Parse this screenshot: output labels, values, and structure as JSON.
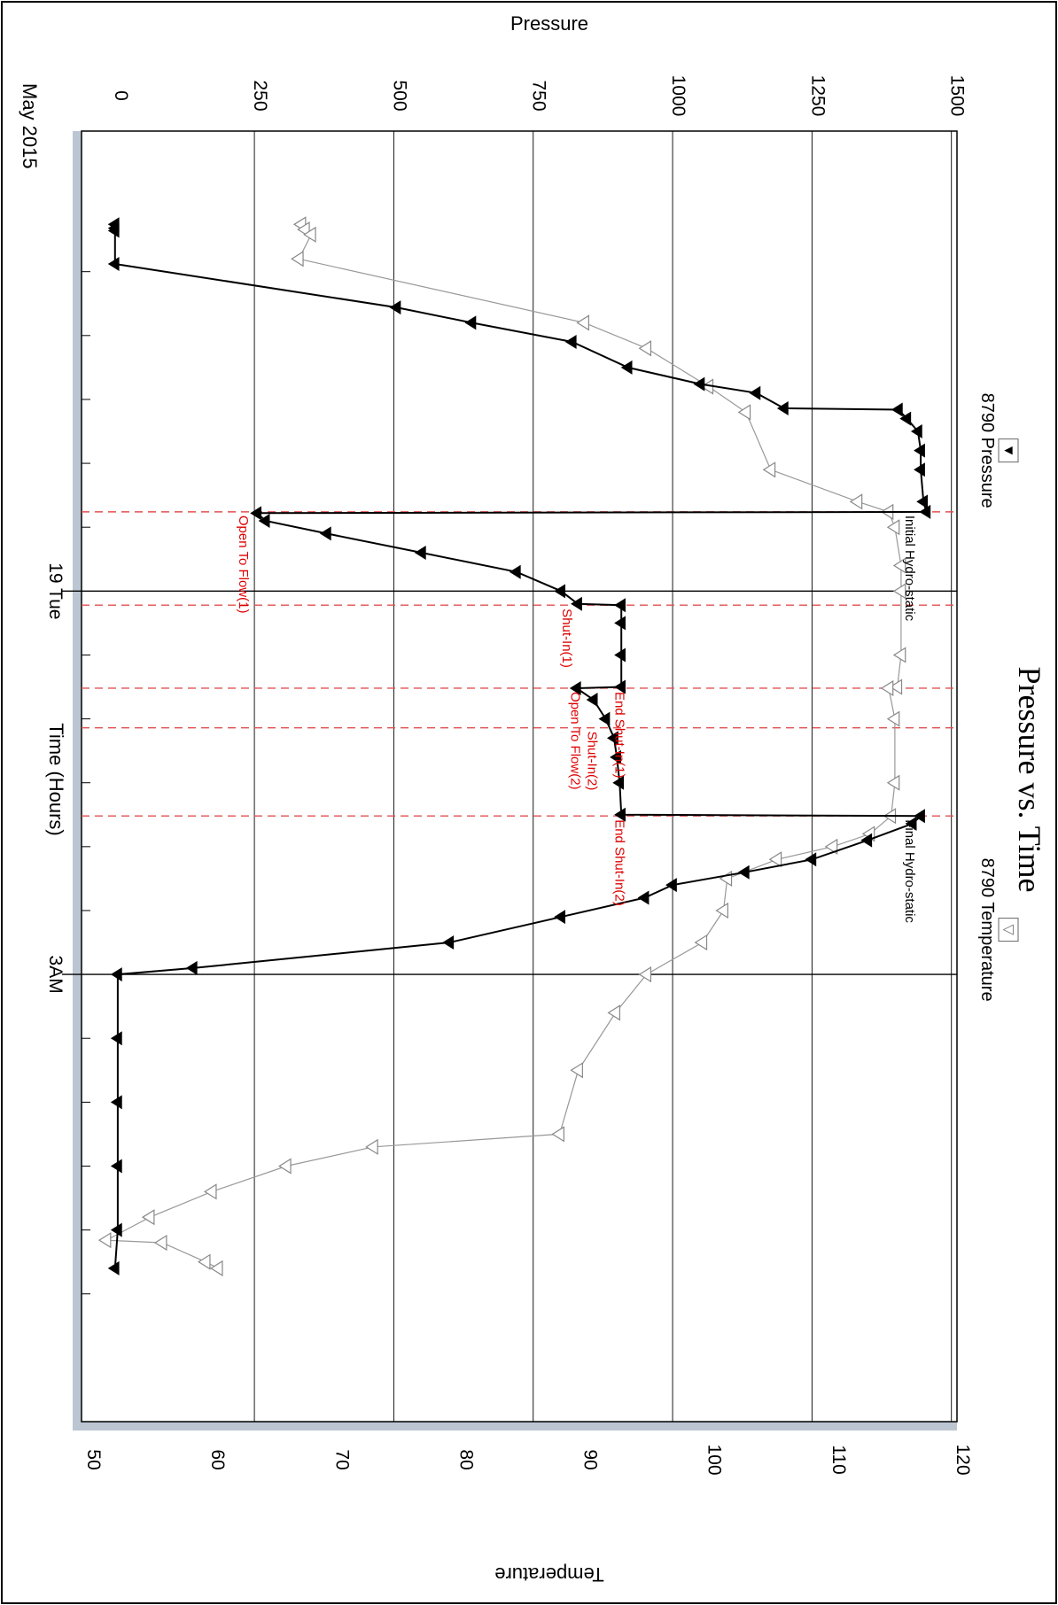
{
  "chart_data": {
    "type": "line",
    "title": "Pressure vs. Time",
    "xlabel": "Time (Hours)",
    "date_label": "May 2015",
    "y_left_label": "Pressure",
    "y_right_label": "Temperature",
    "x_ticks": [
      {
        "hour": 0,
        "label": "19 Tue"
      },
      {
        "hour": 3,
        "label": "3AM"
      }
    ],
    "xlim": [
      -3.6,
      6.5
    ],
    "y_left": {
      "ticks": [
        0,
        250,
        500,
        750,
        1000,
        1250,
        1500
      ],
      "lim": [
        -60,
        1510
      ]
    },
    "y_right": {
      "ticks": [
        50,
        60,
        70,
        80,
        90,
        100,
        110,
        120
      ],
      "lim": [
        49.5,
        120
      ]
    },
    "legend": {
      "pressure": {
        "label": "8790 Pressure",
        "marker": "▼"
      },
      "temperature": {
        "label": "8790 Temperature",
        "marker": "▽"
      }
    },
    "series": [
      {
        "name": "8790 Pressure",
        "axis": "left",
        "color": "#000000",
        "marker": "filled-triangle",
        "points": [
          [
            -2.87,
            0
          ],
          [
            -2.84,
            0
          ],
          [
            -2.82,
            0
          ],
          [
            -2.56,
            0
          ],
          [
            -2.22,
            505
          ],
          [
            -2.1,
            640
          ],
          [
            -1.95,
            820
          ],
          [
            -1.75,
            920
          ],
          [
            -1.62,
            1050
          ],
          [
            -1.55,
            1150
          ],
          [
            -1.43,
            1200
          ],
          [
            -1.42,
            1405
          ],
          [
            -1.35,
            1420
          ],
          [
            -1.25,
            1440
          ],
          [
            -1.1,
            1445
          ],
          [
            -0.95,
            1445
          ],
          [
            -0.7,
            1450
          ],
          [
            -0.62,
            1455
          ],
          [
            -0.61,
            255
          ],
          [
            -0.55,
            270
          ],
          [
            -0.45,
            380
          ],
          [
            -0.3,
            550
          ],
          [
            -0.15,
            720
          ],
          [
            0,
            800
          ],
          [
            0.1,
            830
          ],
          [
            0.11,
            908
          ],
          [
            0.25,
            908
          ],
          [
            0.5,
            908
          ],
          [
            0.75,
            908
          ],
          [
            0.76,
            828
          ],
          [
            0.85,
            858
          ],
          [
            1.0,
            880
          ],
          [
            1.15,
            895
          ],
          [
            1.3,
            900
          ],
          [
            1.5,
            905
          ],
          [
            1.75,
            908
          ],
          [
            1.76,
            1445
          ],
          [
            1.82,
            1430
          ],
          [
            1.95,
            1350
          ],
          [
            2.1,
            1250
          ],
          [
            2.2,
            1130
          ],
          [
            2.3,
            1000
          ],
          [
            2.4,
            950
          ],
          [
            2.55,
            800
          ],
          [
            2.75,
            600
          ],
          [
            2.95,
            140
          ],
          [
            3.0,
            5
          ],
          [
            3.5,
            5
          ],
          [
            4.0,
            5
          ],
          [
            4.5,
            5
          ],
          [
            5.0,
            5
          ],
          [
            5.3,
            0
          ]
        ]
      },
      {
        "name": "8790 Temperature",
        "axis": "right",
        "color": "#999999",
        "marker": "open-triangle",
        "points": [
          [
            -2.87,
            67.2
          ],
          [
            -2.83,
            67.5
          ],
          [
            -2.79,
            68.0
          ],
          [
            -2.6,
            67.0
          ],
          [
            -2.1,
            90.0
          ],
          [
            -1.9,
            95.0
          ],
          [
            -1.6,
            100.0
          ],
          [
            -1.4,
            103.0
          ],
          [
            -0.95,
            105.0
          ],
          [
            -0.7,
            112.0
          ],
          [
            -0.62,
            114.5
          ],
          [
            -0.5,
            115.0
          ],
          [
            -0.2,
            115.5
          ],
          [
            0,
            115.5
          ],
          [
            0.5,
            115.5
          ],
          [
            0.75,
            115.2
          ],
          [
            0.76,
            114.5
          ],
          [
            1.0,
            115.0
          ],
          [
            1.5,
            115.0
          ],
          [
            1.76,
            114.7
          ],
          [
            1.9,
            113.0
          ],
          [
            2.0,
            110.0
          ],
          [
            2.1,
            105.5
          ],
          [
            2.25,
            101.5
          ],
          [
            2.5,
            101.2
          ],
          [
            2.75,
            99.5
          ],
          [
            3.0,
            95.0
          ],
          [
            3.3,
            92.5
          ],
          [
            3.75,
            89.5
          ],
          [
            4.25,
            88.0
          ],
          [
            4.35,
            73.0
          ],
          [
            4.5,
            66.0
          ],
          [
            4.7,
            60.0
          ],
          [
            4.9,
            55.0
          ],
          [
            5.08,
            51.5
          ],
          [
            5.1,
            56.0
          ],
          [
            5.25,
            59.5
          ],
          [
            5.3,
            60.5
          ]
        ]
      }
    ],
    "markers": [
      {
        "hour": -0.62,
        "label": "Initial Hydro-static",
        "color": "#000000",
        "pressure": 1440
      },
      {
        "hour": -0.62,
        "label": "Open To Flow(1)",
        "color": "#dd0000",
        "pressure": 245
      },
      {
        "hour": 0.11,
        "label": "Shut-In(1)",
        "color": "#dd0000",
        "pressure": 825
      },
      {
        "hour": 0.76,
        "label": "End Shut-In(1)",
        "color": "#dd0000",
        "pressure": 920
      },
      {
        "hour": 0.76,
        "label": "Open To Flow(2)",
        "color": "#dd0000",
        "pressure": 840
      },
      {
        "hour": 1.07,
        "label": "Shut-In(2)",
        "color": "#dd0000",
        "pressure": 870
      },
      {
        "hour": 1.76,
        "label": "End Shut-In(2)",
        "color": "#dd0000",
        "pressure": 920
      },
      {
        "hour": 1.76,
        "label": "Final Hydro-static",
        "color": "#000000",
        "pressure": 1440
      }
    ]
  }
}
